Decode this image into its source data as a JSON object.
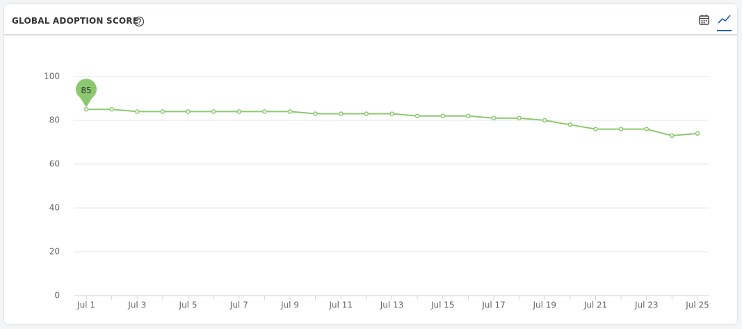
{
  "title": "GLOBAL ADOPTION SCORE",
  "chart_data": {
    "type": "line",
    "categories": [
      "Jul 1",
      null,
      "Jul 3",
      null,
      "Jul 5",
      null,
      "Jul 7",
      null,
      "Jul 9",
      null,
      "Jul 11",
      null,
      "Jul 13",
      null,
      "Jul 15",
      null,
      "Jul 17",
      null,
      "Jul 19",
      null,
      "Jul 21",
      null,
      "Jul 23",
      null,
      "Jul 25"
    ],
    "values": [
      85,
      85,
      84,
      84,
      84,
      84,
      84,
      84,
      84,
      83,
      83,
      83,
      83,
      82,
      82,
      82,
      81,
      81,
      80,
      78,
      76,
      76,
      76,
      73,
      74
    ],
    "color": "#8cc96e",
    "ylim": [
      0,
      100
    ],
    "yticks": [
      0,
      20,
      40,
      60,
      80,
      100
    ],
    "grid": true
  }
}
